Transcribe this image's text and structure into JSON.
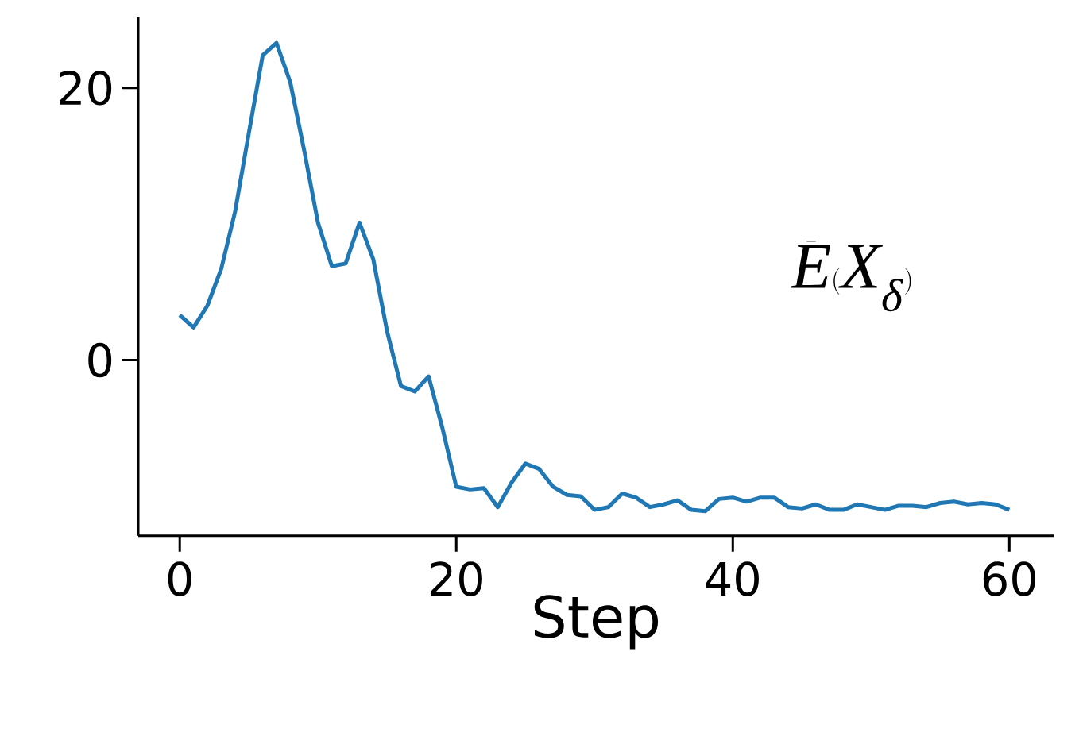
{
  "chart_data": {
    "type": "line",
    "xlabel": "Step",
    "x": [
      0,
      1,
      2,
      3,
      4,
      5,
      6,
      7,
      8,
      9,
      10,
      11,
      12,
      13,
      14,
      15,
      16,
      17,
      18,
      19,
      20,
      21,
      22,
      23,
      24,
      25,
      26,
      27,
      28,
      29,
      30,
      31,
      32,
      33,
      34,
      35,
      36,
      37,
      38,
      39,
      40,
      41,
      42,
      43,
      44,
      45,
      46,
      47,
      48,
      49,
      50,
      51,
      52,
      53,
      54,
      55,
      56,
      57,
      58,
      59,
      60
    ],
    "series": [
      {
        "color": "#1f77b4",
        "values": [
          3.3,
          2.4,
          4.0,
          6.7,
          10.9,
          16.7,
          22.4,
          23.3,
          20.4,
          15.4,
          10.1,
          6.9,
          7.1,
          10.1,
          7.4,
          2.1,
          -1.9,
          -2.3,
          -1.2,
          -5.0,
          -9.3,
          -9.5,
          -9.4,
          -10.8,
          -9.0,
          -7.6,
          -8.0,
          -9.3,
          -9.9,
          -10.0,
          -11.0,
          -10.8,
          -9.8,
          -10.1,
          -10.8,
          -10.6,
          -10.3,
          -11.0,
          -11.1,
          -10.2,
          -10.1,
          -10.4,
          -10.1,
          -10.1,
          -10.8,
          -10.9,
          -10.6,
          -11.0,
          -11.0,
          -10.6,
          -10.8,
          -11.0,
          -10.7,
          -10.7,
          -10.8,
          -10.5,
          -10.4,
          -10.6,
          -10.5,
          -10.6,
          -11.0
        ]
      }
    ],
    "annotations": [
      "\\bar{E}(X_{\\delta})"
    ],
    "xlim": [
      -3,
      63.2
    ],
    "ylim": [
      -12.9,
      25.2
    ],
    "xticks": [
      0,
      20,
      40,
      60
    ],
    "yticks": [
      0,
      20
    ],
    "grid": false,
    "marker": "none",
    "line_style": "solid"
  }
}
